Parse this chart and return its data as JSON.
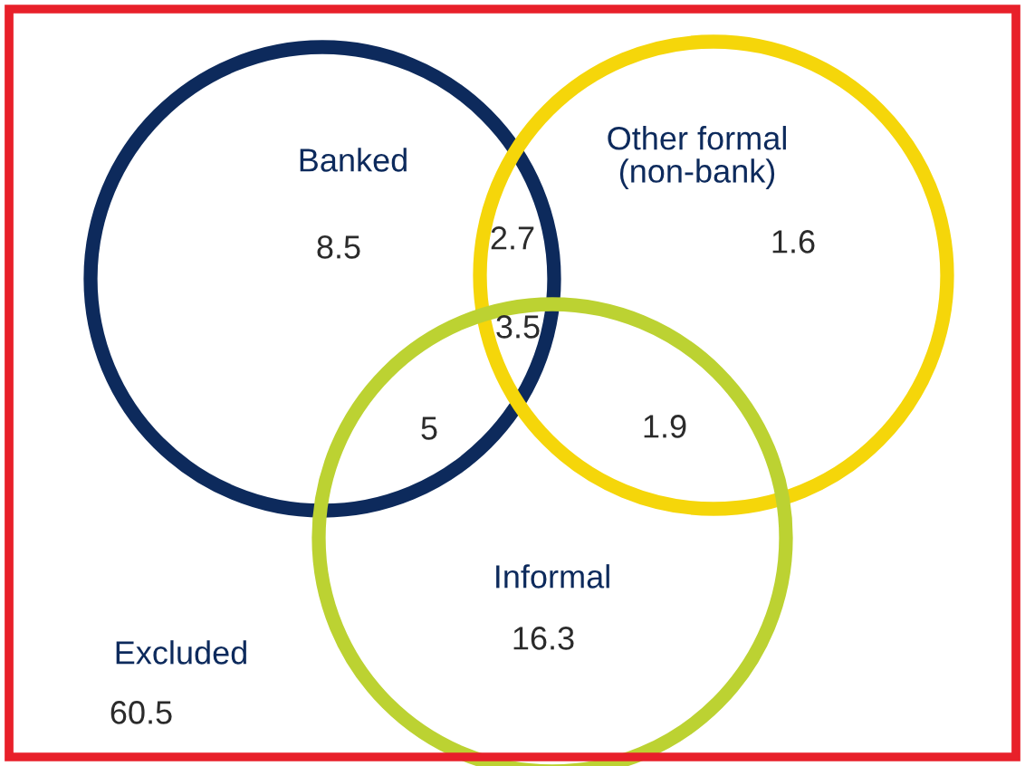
{
  "chart_data": {
    "type": "other",
    "categories": [
      "Banked",
      "Other formal\n(non-bank)",
      "Informal",
      "Excluded"
    ],
    "values": [
      8.5,
      1.6,
      16.3,
      60.5
    ],
    "colors": [
      "#0d2a5c",
      "#f5d60a",
      "#bcd232",
      "#e8202a"
    ],
    "annotations": [
      "2.7",
      "5",
      "1.9",
      "3.5"
    ],
    "data_labels": true
  }
}
